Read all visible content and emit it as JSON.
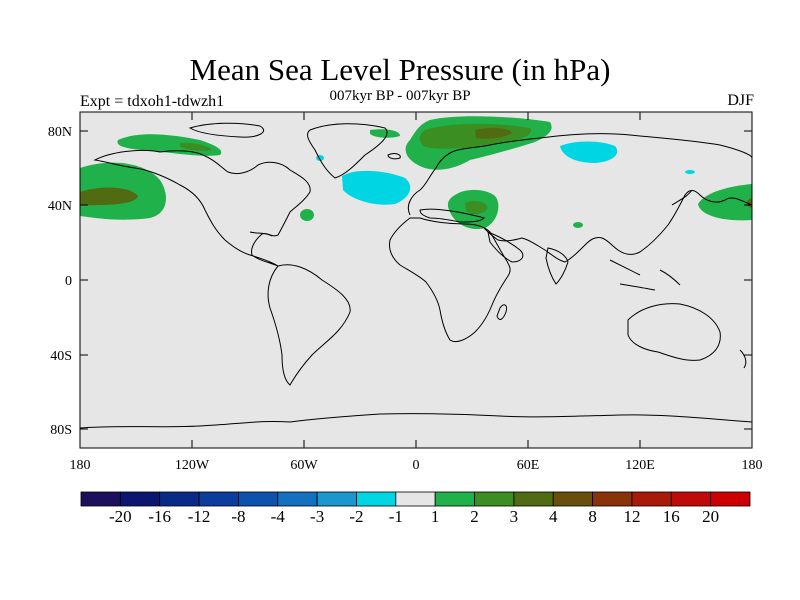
{
  "map": {
    "title": "Mean Sea Level Pressure (in hPa)",
    "subtitle": "007kyr BP - 007kyr BP",
    "left_label": "Expt = tdxoh1-tdwzh1",
    "right_label": "DJF",
    "lat_ticks": [
      "80N",
      "40N",
      "0",
      "40S",
      "80S"
    ],
    "lon_ticks": [
      "180",
      "120W",
      "60W",
      "0",
      "60E",
      "120E",
      "180"
    ]
  },
  "colorbar": {
    "labels": [
      "-20",
      "-16",
      "-12",
      "-8",
      "-4",
      "-3",
      "-2",
      "-1",
      "1",
      "2",
      "3",
      "4",
      "8",
      "12",
      "16",
      "20"
    ],
    "colors": [
      "#1b0f5e",
      "#0a1670",
      "#0a2a88",
      "#0b3d9c",
      "#0d52ac",
      "#1371bf",
      "#1b96cf",
      "#00d6e3",
      "#e6e6e6",
      "#21b14a",
      "#3b8e22",
      "#516b12",
      "#6a4f0c",
      "#8a3208",
      "#a81b08",
      "#c00a0a",
      "#cc0000"
    ]
  },
  "colors": {
    "background": "#e6e6e6",
    "positive_1_2": "#21b14a",
    "positive_2_3": "#3b8e22",
    "positive_3_4": "#516b12",
    "negative_1_2": "#00d6e3"
  }
}
